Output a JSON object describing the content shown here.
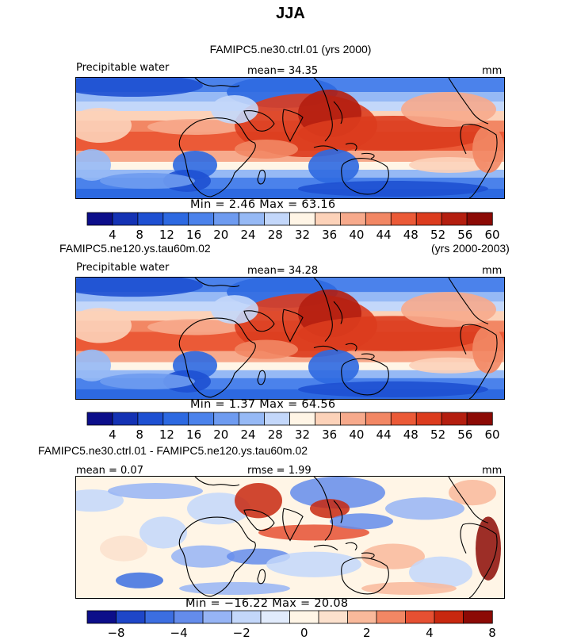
{
  "figure": {
    "season": "JJA",
    "panels": [
      {
        "case_label": "FAMIPC5.ne30.ctrl.01 (yrs 2000)",
        "case_label_right": "",
        "left_label": "Precipitable water",
        "center_label": "mean=  34.35",
        "units": "mm",
        "stats_label": "Min =    2.46  Max =   63.16",
        "colorbar_ticks": [
          "4",
          "8",
          "12",
          "16",
          "20",
          "24",
          "28",
          "32",
          "36",
          "40",
          "44",
          "48",
          "52",
          "56",
          "60"
        ]
      },
      {
        "case_label": "FAMIPC5.ne120.ys.tau60m.02",
        "case_label_right": "(yrs 2000-2003)",
        "left_label": "Precipitable water",
        "center_label": "mean=  34.28",
        "units": "mm",
        "stats_label": "Min =    1.37  Max =   64.56",
        "colorbar_ticks": [
          "4",
          "8",
          "12",
          "16",
          "20",
          "24",
          "28",
          "32",
          "36",
          "40",
          "44",
          "48",
          "52",
          "56",
          "60"
        ]
      },
      {
        "case_label": "FAMIPC5.ne30.ctrl.01 - FAMIPC5.ne120.ys.tau60m.02",
        "case_label_right": "",
        "left_label": "mean =   0.07",
        "center_label": "rmse =   1.99",
        "units": "mm",
        "stats_label": "Min = −16.22  Max =   20.08",
        "colorbar_ticks": [
          "−8",
          "−4",
          "−2",
          "0",
          "2",
          "4",
          "8"
        ]
      }
    ]
  },
  "chart_data": [
    {
      "type": "heatmap",
      "title": "Precipitable water",
      "subtitle": "FAMIPC5.ne30.ctrl.01 (yrs 2000)",
      "units": "mm",
      "mean": 34.35,
      "min": 2.46,
      "max": 63.16,
      "levels": [
        4,
        8,
        12,
        16,
        20,
        24,
        28,
        32,
        36,
        40,
        44,
        48,
        52,
        56,
        60
      ]
    },
    {
      "type": "heatmap",
      "title": "Precipitable water",
      "subtitle": "FAMIPC5.ne120.ys.tau60m.02 (yrs 2000-2003)",
      "units": "mm",
      "mean": 34.28,
      "min": 1.37,
      "max": 64.56,
      "levels": [
        4,
        8,
        12,
        16,
        20,
        24,
        28,
        32,
        36,
        40,
        44,
        48,
        52,
        56,
        60
      ]
    },
    {
      "type": "heatmap",
      "title": "FAMIPC5.ne30.ctrl.01 - FAMIPC5.ne120.ys.tau60m.02",
      "units": "mm",
      "mean": 0.07,
      "rmse": 1.99,
      "min": -16.22,
      "max": 20.08,
      "levels": [
        -8,
        -4,
        -2,
        0,
        2,
        4,
        8
      ]
    }
  ],
  "colors": {
    "palette": [
      "#0c0e8a",
      "#1432b4",
      "#1e50d2",
      "#2d69e1",
      "#4b82eb",
      "#6e9bf0",
      "#96b9f5",
      "#c3d7fa",
      "#fff5e6",
      "#fcd2b9",
      "#f7aa8c",
      "#f28764",
      "#eb5a37",
      "#dc3c1e",
      "#b41e0f",
      "#8c0a05"
    ],
    "diff_palette": [
      "#0c0e8a",
      "#1e46c8",
      "#3c6ee1",
      "#648ceb",
      "#96b4f5",
      "#c3d7fa",
      "#e1ebfc",
      "#fff5e6",
      "#fce1cd",
      "#f9b99b",
      "#f28764",
      "#e65032",
      "#c8280f",
      "#8c0a05"
    ]
  }
}
